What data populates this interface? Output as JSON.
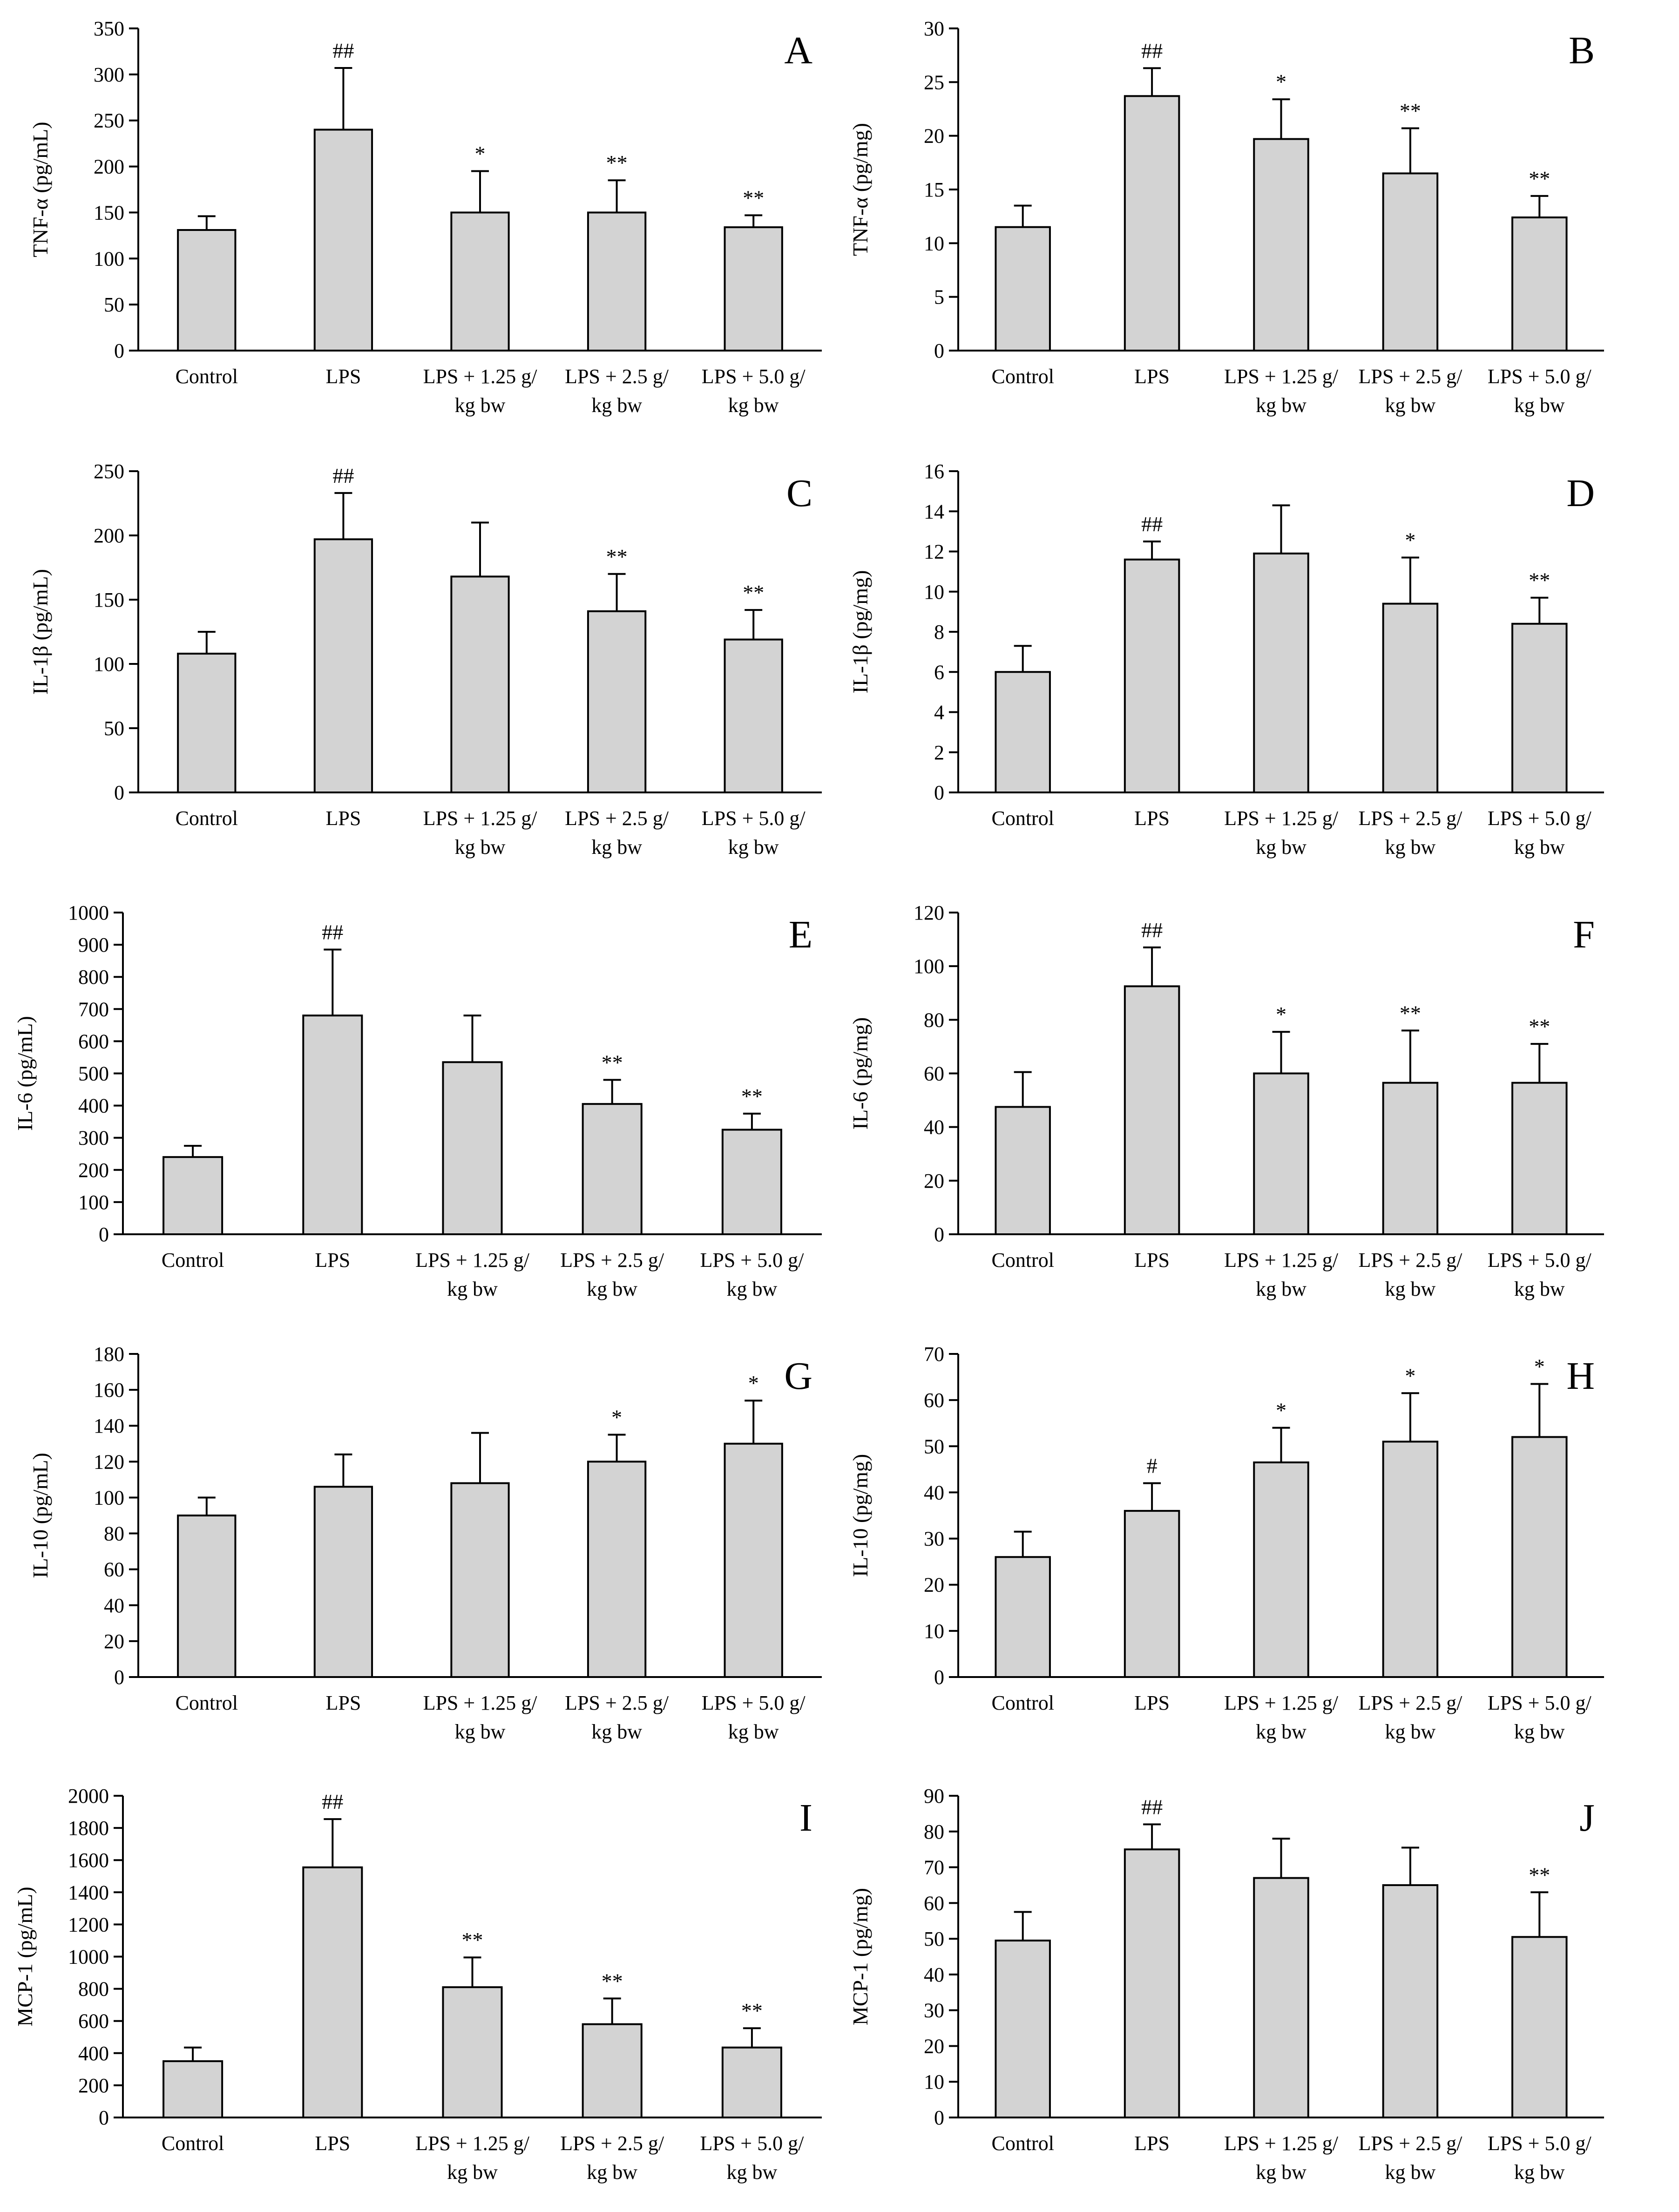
{
  "colors": {
    "bar_fill": "#d3d3d3",
    "stroke": "#000000",
    "background": "#ffffff"
  },
  "chart_data": [
    {
      "type": "bar",
      "panel": "A",
      "ylabel": "TNF-α (pg/mL)",
      "categories": [
        "Control",
        "LPS",
        "LPS + 1.25 g/ kg bw",
        "LPS + 2.5 g/ kg bw",
        "LPS + 5.0 g/ kg bw"
      ],
      "values": [
        131,
        240,
        150,
        150,
        134
      ],
      "errors": [
        15,
        67,
        45,
        35,
        13
      ],
      "annotations": [
        "",
        "##",
        "*",
        "**",
        "**"
      ],
      "ylim": [
        0,
        350
      ],
      "yticks": [
        "0",
        "50",
        "100",
        "150",
        "200",
        "250",
        "300",
        "350"
      ]
    },
    {
      "type": "bar",
      "panel": "B",
      "ylabel": "TNF-α (pg/mg)",
      "categories": [
        "Control",
        "LPS",
        "LPS + 1.25 g/ kg bw",
        "LPS + 2.5 g/ kg bw",
        "LPS + 5.0 g/ kg bw"
      ],
      "values": [
        11.5,
        23.7,
        19.7,
        16.5,
        12.4
      ],
      "errors": [
        2.0,
        2.6,
        3.7,
        4.2,
        2.0
      ],
      "annotations": [
        "",
        "##",
        "*",
        "**",
        "**"
      ],
      "ylim": [
        0,
        30
      ],
      "yticks": [
        "0",
        "5",
        "10",
        "15",
        "20",
        "25",
        "30"
      ]
    },
    {
      "type": "bar",
      "panel": "C",
      "ylabel": "IL-1β (pg/mL)",
      "categories": [
        "Control",
        "LPS",
        "LPS + 1.25 g/ kg bw",
        "LPS + 2.5 g/ kg bw",
        "LPS + 5.0 g/ kg bw"
      ],
      "values": [
        108,
        197,
        168,
        141,
        119
      ],
      "errors": [
        17,
        36,
        42,
        29,
        23
      ],
      "annotations": [
        "",
        "##",
        "",
        "**",
        "**"
      ],
      "ylim": [
        0,
        250
      ],
      "yticks": [
        "0",
        "50",
        "100",
        "150",
        "200",
        "250"
      ]
    },
    {
      "type": "bar",
      "panel": "D",
      "ylabel": "IL-1β (pg/mg)",
      "categories": [
        "Control",
        "LPS",
        "LPS + 1.25 g/ kg bw",
        "LPS + 2.5 g/ kg bw",
        "LPS + 5.0 g/ kg bw"
      ],
      "values": [
        6.0,
        11.6,
        11.9,
        9.4,
        8.4
      ],
      "errors": [
        1.3,
        0.9,
        2.4,
        2.3,
        1.3
      ],
      "annotations": [
        "",
        "##",
        "",
        "*",
        "**"
      ],
      "ylim": [
        0,
        16
      ],
      "yticks": [
        "0",
        "2",
        "4",
        "6",
        "8",
        "10",
        "12",
        "14",
        "16"
      ]
    },
    {
      "type": "bar",
      "panel": "E",
      "ylabel": "IL-6 (pg/mL)",
      "categories": [
        "Control",
        "LPS",
        "LPS + 1.25 g/ kg bw",
        "LPS + 2.5 g/ kg bw",
        "LPS + 5.0 g/ kg bw"
      ],
      "values": [
        240,
        680,
        535,
        405,
        325
      ],
      "errors": [
        35,
        205,
        145,
        75,
        50
      ],
      "annotations": [
        "",
        "##",
        "",
        "**",
        "**"
      ],
      "ylim": [
        0,
        1000
      ],
      "yticks": [
        "0",
        "100",
        "200",
        "300",
        "400",
        "500",
        "600",
        "700",
        "800",
        "900",
        "1000"
      ]
    },
    {
      "type": "bar",
      "panel": "F",
      "ylabel": "IL-6 (pg/mg)",
      "categories": [
        "Control",
        "LPS",
        "LPS + 1.25 g/ kg bw",
        "LPS + 2.5 g/ kg bw",
        "LPS + 5.0 g/ kg bw"
      ],
      "values": [
        47.5,
        92.5,
        60.0,
        56.5,
        56.5
      ],
      "errors": [
        13.0,
        14.5,
        15.5,
        19.5,
        14.5
      ],
      "annotations": [
        "",
        "##",
        "*",
        "**",
        "**"
      ],
      "ylim": [
        0,
        120
      ],
      "yticks": [
        "0",
        "20",
        "40",
        "60",
        "80",
        "100",
        "120"
      ]
    },
    {
      "type": "bar",
      "panel": "G",
      "ylabel": "IL-10 (pg/mL)",
      "categories": [
        "Control",
        "LPS",
        "LPS + 1.25 g/ kg bw",
        "LPS + 2.5 g/ kg bw",
        "LPS + 5.0 g/ kg bw"
      ],
      "values": [
        90,
        106,
        108,
        120,
        130
      ],
      "errors": [
        10,
        18,
        28,
        15,
        24
      ],
      "annotations": [
        "",
        "",
        "",
        "*",
        "*"
      ],
      "ylim": [
        0,
        180
      ],
      "yticks": [
        "0",
        "20",
        "40",
        "60",
        "80",
        "100",
        "120",
        "140",
        "160",
        "180"
      ]
    },
    {
      "type": "bar",
      "panel": "H",
      "ylabel": "IL-10 (pg/mg)",
      "categories": [
        "Control",
        "LPS",
        "LPS + 1.25 g/ kg bw",
        "LPS + 2.5 g/ kg bw",
        "LPS + 5.0 g/ kg bw"
      ],
      "values": [
        26,
        36,
        46.5,
        51,
        52
      ],
      "errors": [
        5.5,
        6,
        7.5,
        10.5,
        11.5
      ],
      "annotations": [
        "",
        "#",
        "*",
        "*",
        "*"
      ],
      "ylim": [
        0,
        70
      ],
      "yticks": [
        "0",
        "10",
        "20",
        "30",
        "40",
        "50",
        "60",
        "70"
      ]
    },
    {
      "type": "bar",
      "panel": "I",
      "ylabel": "MCP-1 (pg/mL)",
      "categories": [
        "Control",
        "LPS",
        "LPS + 1.25 g/ kg bw",
        "LPS + 2.5 g/ kg bw",
        "LPS + 5.0 g/ kg bw"
      ],
      "values": [
        350,
        1555,
        810,
        580,
        435
      ],
      "errors": [
        85,
        300,
        185,
        160,
        120
      ],
      "annotations": [
        "",
        "##",
        "**",
        "**",
        "**"
      ],
      "ylim": [
        0,
        2000
      ],
      "yticks": [
        "0",
        "200",
        "400",
        "600",
        "800",
        "1000",
        "1200",
        "1400",
        "1600",
        "1800",
        "2000"
      ]
    },
    {
      "type": "bar",
      "panel": "J",
      "ylabel": "MCP-1 (pg/mg)",
      "categories": [
        "Control",
        "LPS",
        "LPS + 1.25 g/ kg bw",
        "LPS + 2.5 g/ kg bw",
        "LPS + 5.0 g/ kg bw"
      ],
      "values": [
        49.5,
        75,
        67,
        65,
        50.5
      ],
      "errors": [
        8,
        7,
        11,
        10.5,
        12.5
      ],
      "annotations": [
        "",
        "##",
        "",
        "",
        "**"
      ],
      "ylim": [
        0,
        90
      ],
      "yticks": [
        "0",
        "10",
        "20",
        "30",
        "40",
        "50",
        "60",
        "70",
        "80",
        "90"
      ]
    }
  ]
}
